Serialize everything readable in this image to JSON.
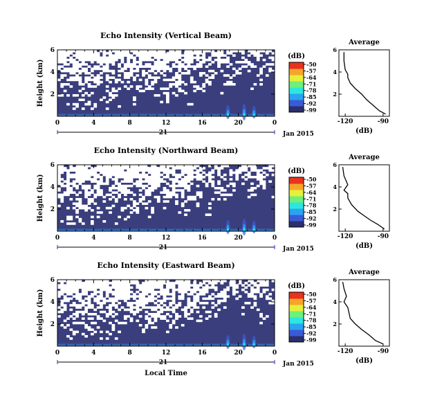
{
  "figure": {
    "date_label": "Jan 2015",
    "date_tick": "21",
    "x_label": "Local Time"
  },
  "chart_data": [
    {
      "type": "heatmap",
      "title": "Echo Intensity (Vertical Beam)",
      "ylabel": "Height (km)",
      "xlabel": "",
      "x_ticks": [
        "0",
        "4",
        "8",
        "12",
        "16",
        "20",
        "0"
      ],
      "xlim": [
        0,
        24
      ],
      "y_ticks": [
        "2",
        "4",
        "6"
      ],
      "ylim": [
        0,
        6
      ],
      "colorbar": {
        "label": "(dB)",
        "ticks": [
          "-50",
          "-57",
          "-64",
          "-71",
          "-78",
          "-85",
          "-92",
          "-99"
        ]
      },
      "average_profile": {
        "title": "Average",
        "xlabel": "(dB)",
        "x_ticks": [
          "-120",
          "-90"
        ],
        "xlim": [
          -125,
          -85
        ],
        "ylim": [
          0,
          6
        ],
        "y_ticks": [
          "2",
          "4",
          "6"
        ],
        "dB": [
          -88,
          -93,
          -98,
          -103,
          -107,
          -112,
          -116,
          -118,
          -118,
          -120,
          -121,
          -121
        ],
        "height_km": [
          0.2,
          0.5,
          1.0,
          1.5,
          2.0,
          2.5,
          3.0,
          3.5,
          3.8,
          4.2,
          5.0,
          5.8
        ]
      }
    },
    {
      "type": "heatmap",
      "title": "Echo Intensity (Northward Beam)",
      "ylabel": "Height (km)",
      "xlabel": "",
      "x_ticks": [
        "0",
        "4",
        "8",
        "12",
        "16",
        "20",
        "0"
      ],
      "xlim": [
        0,
        24
      ],
      "y_ticks": [
        "2",
        "4",
        "6"
      ],
      "ylim": [
        0,
        6
      ],
      "colorbar": {
        "label": "(dB)",
        "ticks": [
          "-50",
          "-57",
          "-64",
          "-71",
          "-78",
          "-85",
          "-92",
          "-99"
        ]
      },
      "average_profile": {
        "title": "Average",
        "xlabel": "(dB)",
        "x_ticks": [
          "-120",
          "-90"
        ],
        "xlim": [
          -125,
          -85
        ],
        "ylim": [
          0,
          6
        ],
        "y_ticks": [
          "2",
          "4",
          "6"
        ],
        "dB": [
          -89,
          -94,
          -100,
          -105,
          -110,
          -115,
          -118,
          -118,
          -121,
          -118,
          -121,
          -122
        ],
        "height_km": [
          0.2,
          0.6,
          1.0,
          1.4,
          1.8,
          2.4,
          3.0,
          3.4,
          3.7,
          4.2,
          5.0,
          5.8
        ]
      }
    },
    {
      "type": "heatmap",
      "title": "Echo Intensity (Eastward Beam)",
      "ylabel": "Height (km)",
      "xlabel": "Local Time",
      "x_ticks": [
        "0",
        "4",
        "8",
        "12",
        "16",
        "20",
        "0"
      ],
      "xlim": [
        0,
        24
      ],
      "y_ticks": [
        "2",
        "4",
        "6"
      ],
      "ylim": [
        0,
        6
      ],
      "colorbar": {
        "label": "(dB)",
        "ticks": [
          "-50",
          "-57",
          "-64",
          "-71",
          "-78",
          "-85",
          "-92",
          "-99"
        ]
      },
      "average_profile": {
        "title": "Average",
        "xlabel": "(dB)",
        "x_ticks": [
          "-120",
          "-90"
        ],
        "xlim": [
          -125,
          -85
        ],
        "ylim": [
          0,
          6
        ],
        "y_ticks": [
          "2",
          "4",
          "6"
        ],
        "dB": [
          -90,
          -96,
          -101,
          -107,
          -112,
          -116,
          -117,
          -118,
          -121,
          -119,
          -121,
          -122
        ],
        "height_km": [
          0.2,
          0.5,
          1.0,
          1.5,
          2.0,
          2.5,
          3.0,
          3.5,
          4.0,
          4.5,
          5.2,
          5.8
        ]
      }
    }
  ],
  "colors": {
    "background_echo": "#3a3e7c",
    "colormap": [
      "#2b2f6e",
      "#3b5bd6",
      "#2aa4f0",
      "#2ee6e0",
      "#6ff07a",
      "#e6f03a",
      "#f7a52a",
      "#e8331f"
    ]
  }
}
